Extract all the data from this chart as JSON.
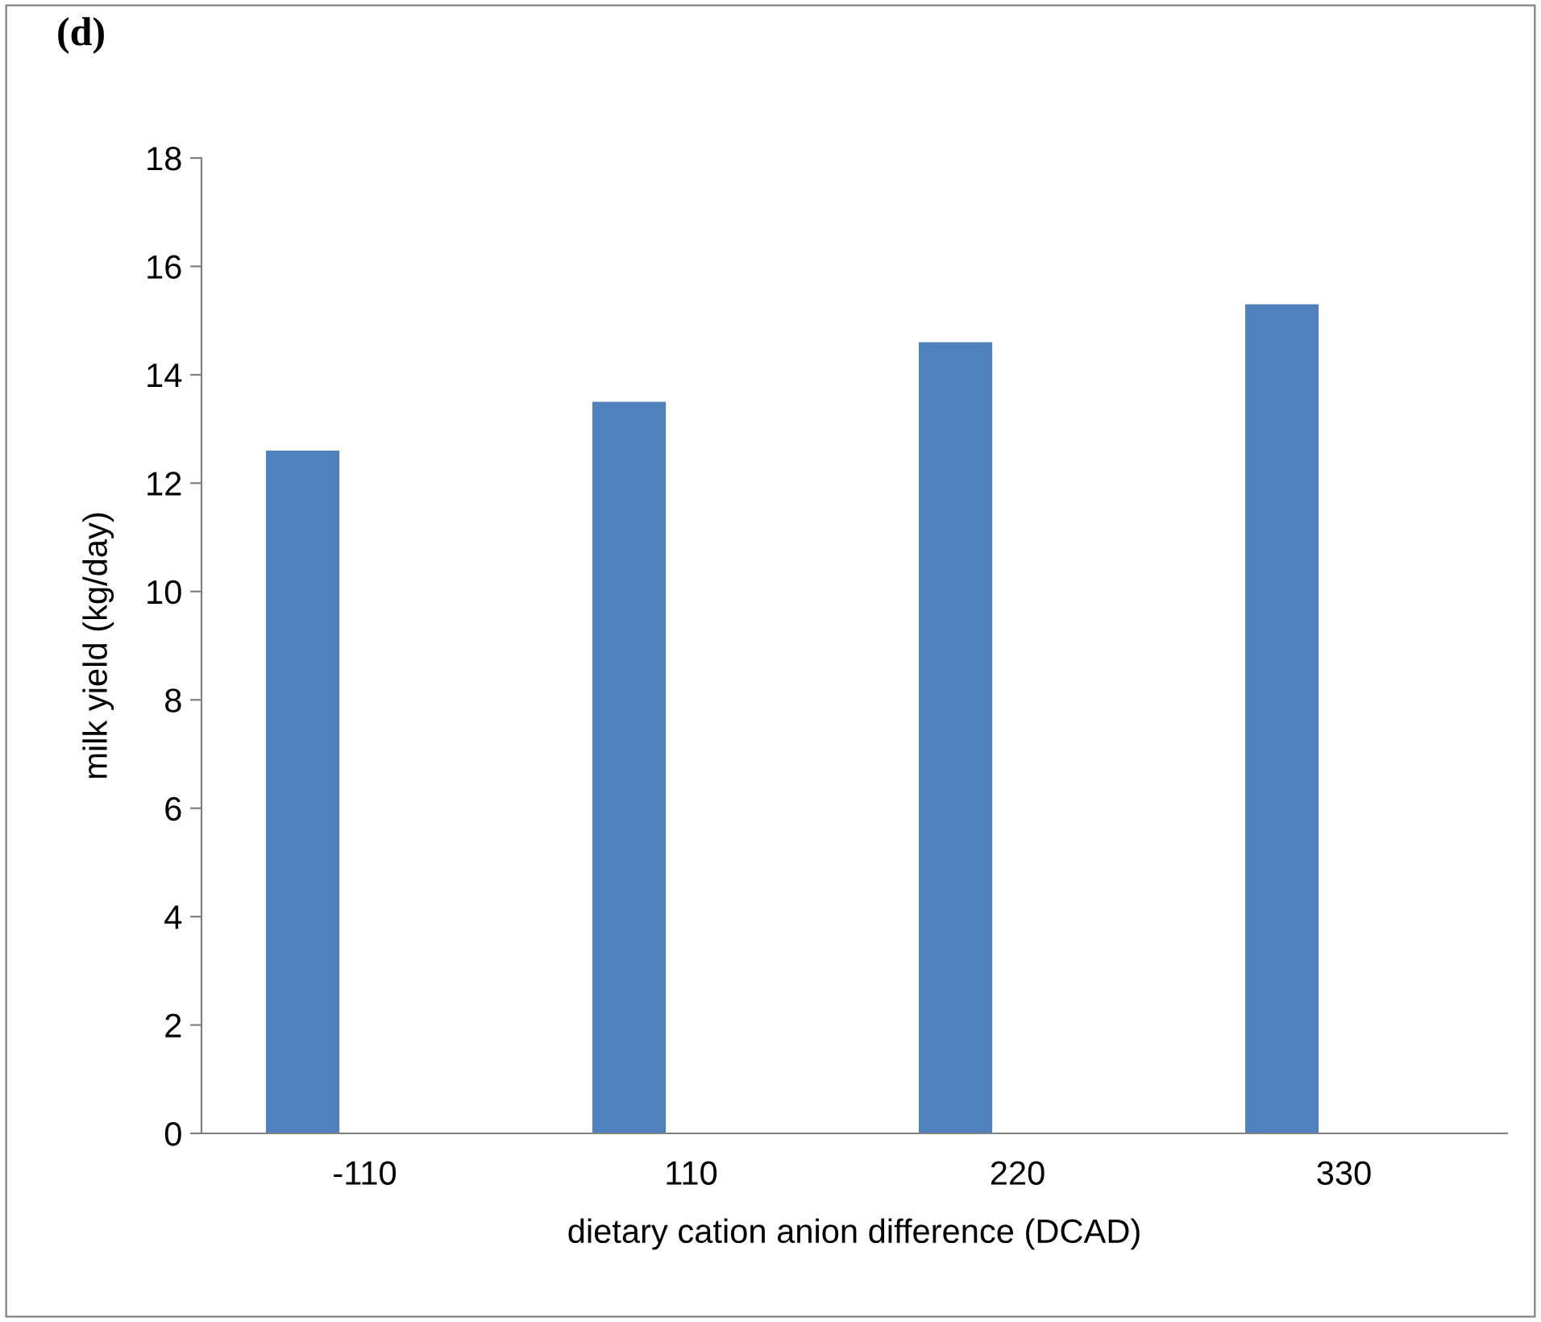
{
  "chart_data": {
    "type": "bar",
    "title": "(d)",
    "xlabel": "dietary cation anion difference (DCAD)",
    "ylabel": "milk yield (kg/day)",
    "categories": [
      "-110",
      "110",
      "220",
      "330"
    ],
    "values": [
      12.6,
      13.5,
      14.6,
      15.3
    ],
    "color": "#4f81bd",
    "ylim": [
      0,
      18
    ],
    "yticks": [
      0,
      2,
      4,
      6,
      8,
      10,
      12,
      14,
      16,
      18
    ],
    "grid": false,
    "legend": false
  }
}
